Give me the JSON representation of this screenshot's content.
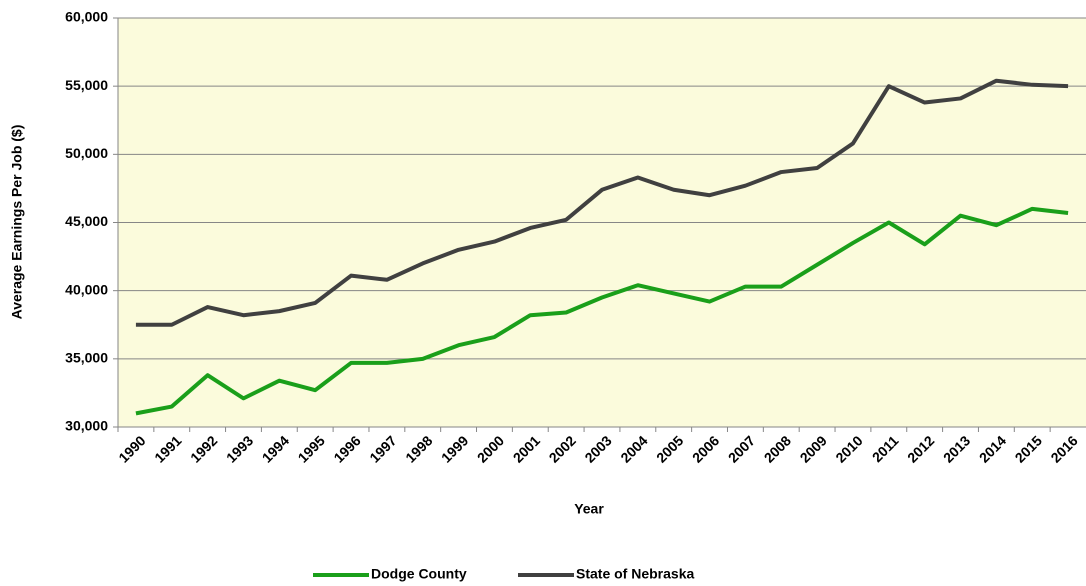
{
  "chart_data": {
    "type": "line",
    "x_label": "Year",
    "y_label": "Average Earnings Per Job ($)",
    "categories": [
      "1990",
      "1991",
      "1992",
      "1993",
      "1994",
      "1995",
      "1996",
      "1997",
      "1998",
      "1999",
      "2000",
      "2001",
      "2002",
      "2003",
      "2004",
      "2005",
      "2006",
      "2007",
      "2008",
      "2009",
      "2010",
      "2011",
      "2012",
      "2013",
      "2014",
      "2015",
      "2016"
    ],
    "series": [
      {
        "name": "Dodge County",
        "color": "#1a9f1a",
        "values": [
          31000,
          31500,
          33800,
          32100,
          33400,
          32700,
          34700,
          34700,
          35000,
          36000,
          36600,
          38200,
          38400,
          39500,
          40400,
          39800,
          39200,
          40300,
          40300,
          41900,
          43500,
          45000,
          43400,
          45500,
          44800,
          46000,
          45700
        ]
      },
      {
        "name": "State of Nebraska",
        "color": "#404040",
        "values": [
          37500,
          37500,
          38800,
          38200,
          38500,
          39100,
          41100,
          40800,
          42000,
          43000,
          43600,
          44600,
          45200,
          47400,
          48300,
          47400,
          47000,
          47700,
          48700,
          49000,
          50800,
          55000,
          53800,
          54100,
          55400,
          55100,
          55000
        ]
      }
    ],
    "ylim": [
      30000,
      60000
    ],
    "yticks": [
      {
        "value": 30000,
        "label": "30,000"
      },
      {
        "value": 35000,
        "label": "35,000"
      },
      {
        "value": 40000,
        "label": "40,000"
      },
      {
        "value": 45000,
        "label": "45,000"
      },
      {
        "value": 50000,
        "label": "50,000"
      },
      {
        "value": 55000,
        "label": "55,000"
      },
      {
        "value": 60000,
        "label": "60,000"
      }
    ],
    "grid": true,
    "legend": "bottom"
  }
}
